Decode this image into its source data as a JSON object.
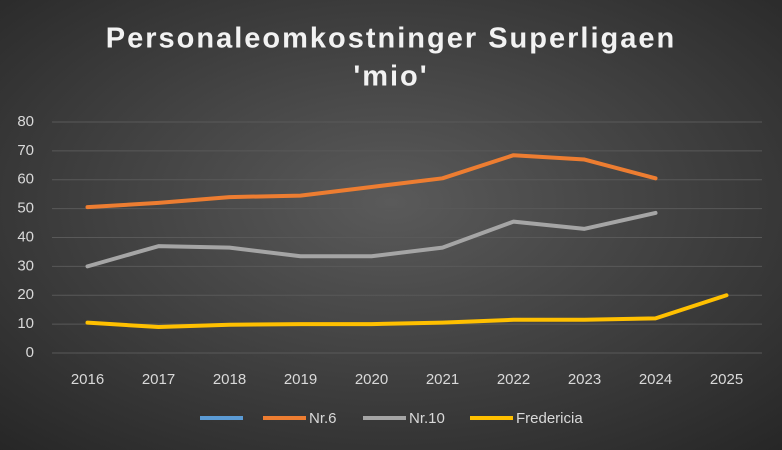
{
  "chart_data": {
    "type": "line",
    "title": "Personaleomkostninger Superligaen",
    "subtitle": "'mio'",
    "categories": [
      "2016",
      "2017",
      "2018",
      "2019",
      "2020",
      "2021",
      "2022",
      "2023",
      "2024",
      "2025"
    ],
    "series": [
      {
        "color": "#5b9bd5",
        "values": [
          null,
          null,
          null,
          null,
          null,
          null,
          null,
          null,
          null,
          null
        ]
      },
      {
        "name": "Nr.6",
        "color": "#ed7d31",
        "values": [
          50.5,
          52,
          54,
          54.5,
          57.5,
          60.5,
          68.5,
          67,
          60.5,
          null
        ]
      },
      {
        "name": "Nr.10",
        "color": "#a5a5a5",
        "values": [
          30,
          37,
          36.5,
          33.5,
          33.5,
          36.5,
          45.5,
          43,
          48.5,
          null
        ]
      },
      {
        "name": "Fredericia",
        "color": "#ffc000",
        "values": [
          10.5,
          9,
          9.8,
          10,
          10,
          10.5,
          11.5,
          11.5,
          12,
          20
        ]
      }
    ],
    "ylim": [
      0,
      80
    ],
    "yticks": [
      0,
      10,
      20,
      30,
      40,
      50,
      60,
      70,
      80
    ],
    "grid": true,
    "legend": "bottom"
  }
}
